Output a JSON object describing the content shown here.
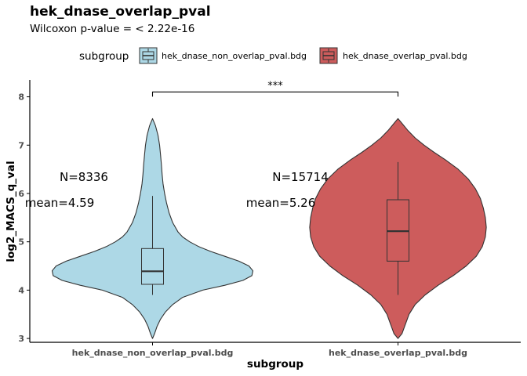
{
  "chart_data": {
    "type": "violin",
    "title": "hek_dnase_overlap_pval",
    "subtitle": "Wilcoxon p-value = < 2.22e-16",
    "xlabel": "subgroup",
    "ylabel": "log2_MACS_q_val",
    "ylim": [
      2.92,
      8.35
    ],
    "yticks": [
      3,
      4,
      5,
      6,
      7,
      8
    ],
    "grid": false,
    "legend": {
      "title": "subgroup",
      "placement": "top"
    },
    "significance": {
      "label": "***",
      "y": 8.1
    },
    "categories": [
      "hek_dnase_non_overlap_pval.bdg",
      "hek_dnase_overlap_pval.bdg"
    ],
    "series": [
      {
        "name": "hek_dnase_non_overlap_pval.bdg",
        "color": "#ADD8E6",
        "n_label": "N=8336",
        "mean_label": "mean=4.59",
        "n": 8336,
        "mean": 4.59,
        "min": 3.0,
        "max": 7.55,
        "box": {
          "whisker_low": 3.9,
          "q1": 4.12,
          "median": 4.39,
          "q3": 4.86,
          "whisker_high": 5.95
        },
        "density": [
          [
            3.0,
            0.0
          ],
          [
            3.1,
            0.02
          ],
          [
            3.25,
            0.045
          ],
          [
            3.4,
            0.08
          ],
          [
            3.55,
            0.13
          ],
          [
            3.7,
            0.2
          ],
          [
            3.85,
            0.3
          ],
          [
            4.0,
            0.5
          ],
          [
            4.1,
            0.72
          ],
          [
            4.2,
            0.9
          ],
          [
            4.3,
            0.99
          ],
          [
            4.4,
            1.0
          ],
          [
            4.5,
            0.96
          ],
          [
            4.6,
            0.86
          ],
          [
            4.7,
            0.72
          ],
          [
            4.8,
            0.58
          ],
          [
            4.9,
            0.46
          ],
          [
            5.0,
            0.37
          ],
          [
            5.1,
            0.3
          ],
          [
            5.2,
            0.255
          ],
          [
            5.4,
            0.2
          ],
          [
            5.6,
            0.165
          ],
          [
            5.8,
            0.14
          ],
          [
            6.0,
            0.12
          ],
          [
            6.2,
            0.105
          ],
          [
            6.4,
            0.095
          ],
          [
            6.6,
            0.088
          ],
          [
            6.8,
            0.08
          ],
          [
            7.0,
            0.07
          ],
          [
            7.2,
            0.055
          ],
          [
            7.4,
            0.03
          ],
          [
            7.55,
            0.0
          ]
        ]
      },
      {
        "name": "hek_dnase_overlap_pval.bdg",
        "color": "#CD5C5C",
        "n_label": "N=15714",
        "mean_label": "mean=5.26",
        "n": 15714,
        "mean": 5.26,
        "min": 3.0,
        "max": 7.55,
        "box": {
          "whisker_low": 3.9,
          "q1": 4.6,
          "median": 5.22,
          "q3": 5.87,
          "whisker_high": 6.65
        },
        "density": [
          [
            3.0,
            0.0
          ],
          [
            3.1,
            0.04
          ],
          [
            3.3,
            0.075
          ],
          [
            3.5,
            0.11
          ],
          [
            3.7,
            0.17
          ],
          [
            3.9,
            0.27
          ],
          [
            4.1,
            0.4
          ],
          [
            4.3,
            0.55
          ],
          [
            4.5,
            0.68
          ],
          [
            4.7,
            0.78
          ],
          [
            4.9,
            0.84
          ],
          [
            5.1,
            0.87
          ],
          [
            5.3,
            0.88
          ],
          [
            5.5,
            0.87
          ],
          [
            5.7,
            0.85
          ],
          [
            5.9,
            0.82
          ],
          [
            6.1,
            0.77
          ],
          [
            6.3,
            0.7
          ],
          [
            6.5,
            0.6
          ],
          [
            6.7,
            0.47
          ],
          [
            6.85,
            0.36
          ],
          [
            7.0,
            0.26
          ],
          [
            7.15,
            0.17
          ],
          [
            7.3,
            0.1
          ],
          [
            7.45,
            0.04
          ],
          [
            7.55,
            0.0
          ]
        ]
      }
    ]
  }
}
